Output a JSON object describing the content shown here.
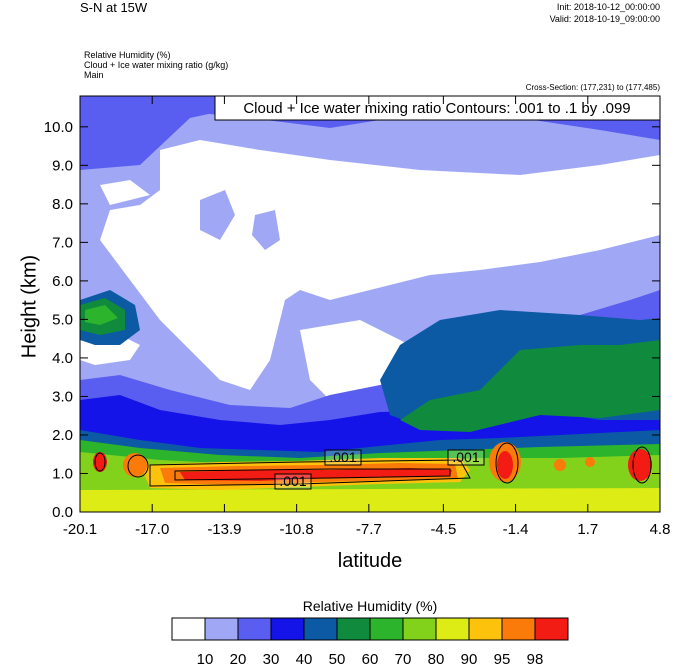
{
  "header": {
    "title": "S-N at 15W",
    "init": "Init: 2018-10-12_00:00:00",
    "valid": "Valid: 2018-10-19_09:00:00",
    "field1": "Relative Humidity   (%)",
    "field2": "Cloud + Ice water mixing ratio   (g/kg)",
    "field3": "Main",
    "cross_section": "Cross-Section: (177,231) to (177,485)"
  },
  "chart_data": {
    "type": "heatmap",
    "title": "Cloud + Ice water mixing ratio Contours: .001 to .1 by .099",
    "xlabel": "latitude",
    "ylabel": "Height (km)",
    "x_ticks": [
      "-20.1",
      "-17.0",
      "-13.9",
      "-10.8",
      "-7.7",
      "-4.5",
      "-1.4",
      "1.7",
      "4.8"
    ],
    "y_ticks": [
      "0.0",
      "1.0",
      "2.0",
      "3.0",
      "4.0",
      "5.0",
      "6.0",
      "7.0",
      "8.0",
      "9.0",
      "10.0"
    ],
    "xlim": [
      -20.1,
      4.8
    ],
    "ylim": [
      0,
      10.8
    ],
    "contour_labels": [
      ".001",
      ".001",
      ".001"
    ],
    "colorbar": {
      "title": "Relative Humidity  (%)",
      "labels": [
        "10",
        "20",
        "30",
        "40",
        "50",
        "60",
        "70",
        "80",
        "90",
        "95",
        "98"
      ],
      "colors": [
        "#ffffff",
        "#a0a8f6",
        "#5a5ef0",
        "#1414e8",
        "#0c5aa4",
        "#108a3c",
        "#2cb42c",
        "#82d21c",
        "#dcec14",
        "#fcc20c",
        "#fa7a0a",
        "#f21c14"
      ]
    }
  }
}
